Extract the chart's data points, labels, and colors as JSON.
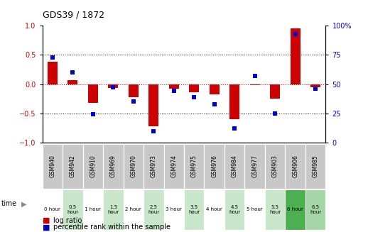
{
  "title": "GDS39 / 1872",
  "samples": [
    "GSM940",
    "GSM942",
    "GSM910",
    "GSM969",
    "GSM970",
    "GSM973",
    "GSM974",
    "GSM975",
    "GSM976",
    "GSM984",
    "GSM977",
    "GSM903",
    "GSM906",
    "GSM985"
  ],
  "time_labels": [
    "0 hour",
    "0.5\nhour",
    "1 hour",
    "1.5\nhour",
    "2 hour",
    "2.5\nhour",
    "3 hour",
    "3.5\nhour",
    "4 hour",
    "4.5\nhour",
    "5 hour",
    "5.5\nhour",
    "6 hour",
    "6.5\nhour"
  ],
  "time_colors": [
    "#ffffff",
    "#c8e6c9",
    "#ffffff",
    "#c8e6c9",
    "#ffffff",
    "#c8e6c9",
    "#ffffff",
    "#c8e6c9",
    "#ffffff",
    "#c8e6c9",
    "#ffffff",
    "#c8e6c9",
    "#4caf50",
    "#a5d6a7"
  ],
  "log_ratio": [
    0.38,
    0.07,
    -0.32,
    -0.07,
    -0.22,
    -0.72,
    -0.08,
    -0.14,
    -0.18,
    -0.6,
    -0.02,
    -0.25,
    0.95,
    -0.06
  ],
  "percentile": [
    73,
    60,
    24,
    47,
    35,
    10,
    44,
    39,
    33,
    12,
    57,
    25,
    93,
    46
  ],
  "ylim_left": [
    -1,
    1
  ],
  "ylim_right": [
    0,
    100
  ],
  "left_yticks": [
    -1,
    -0.5,
    0,
    0.5,
    1
  ],
  "right_yticks": [
    0,
    25,
    50,
    75,
    100
  ],
  "bar_color": "#cc0000",
  "dot_color": "#0000cc",
  "zero_line_color": "#cc0000",
  "bg_color": "#ffffff",
  "plot_bg": "#ffffff",
  "gsm_bg": "#c8c8c8",
  "gsm_border": "#ffffff"
}
